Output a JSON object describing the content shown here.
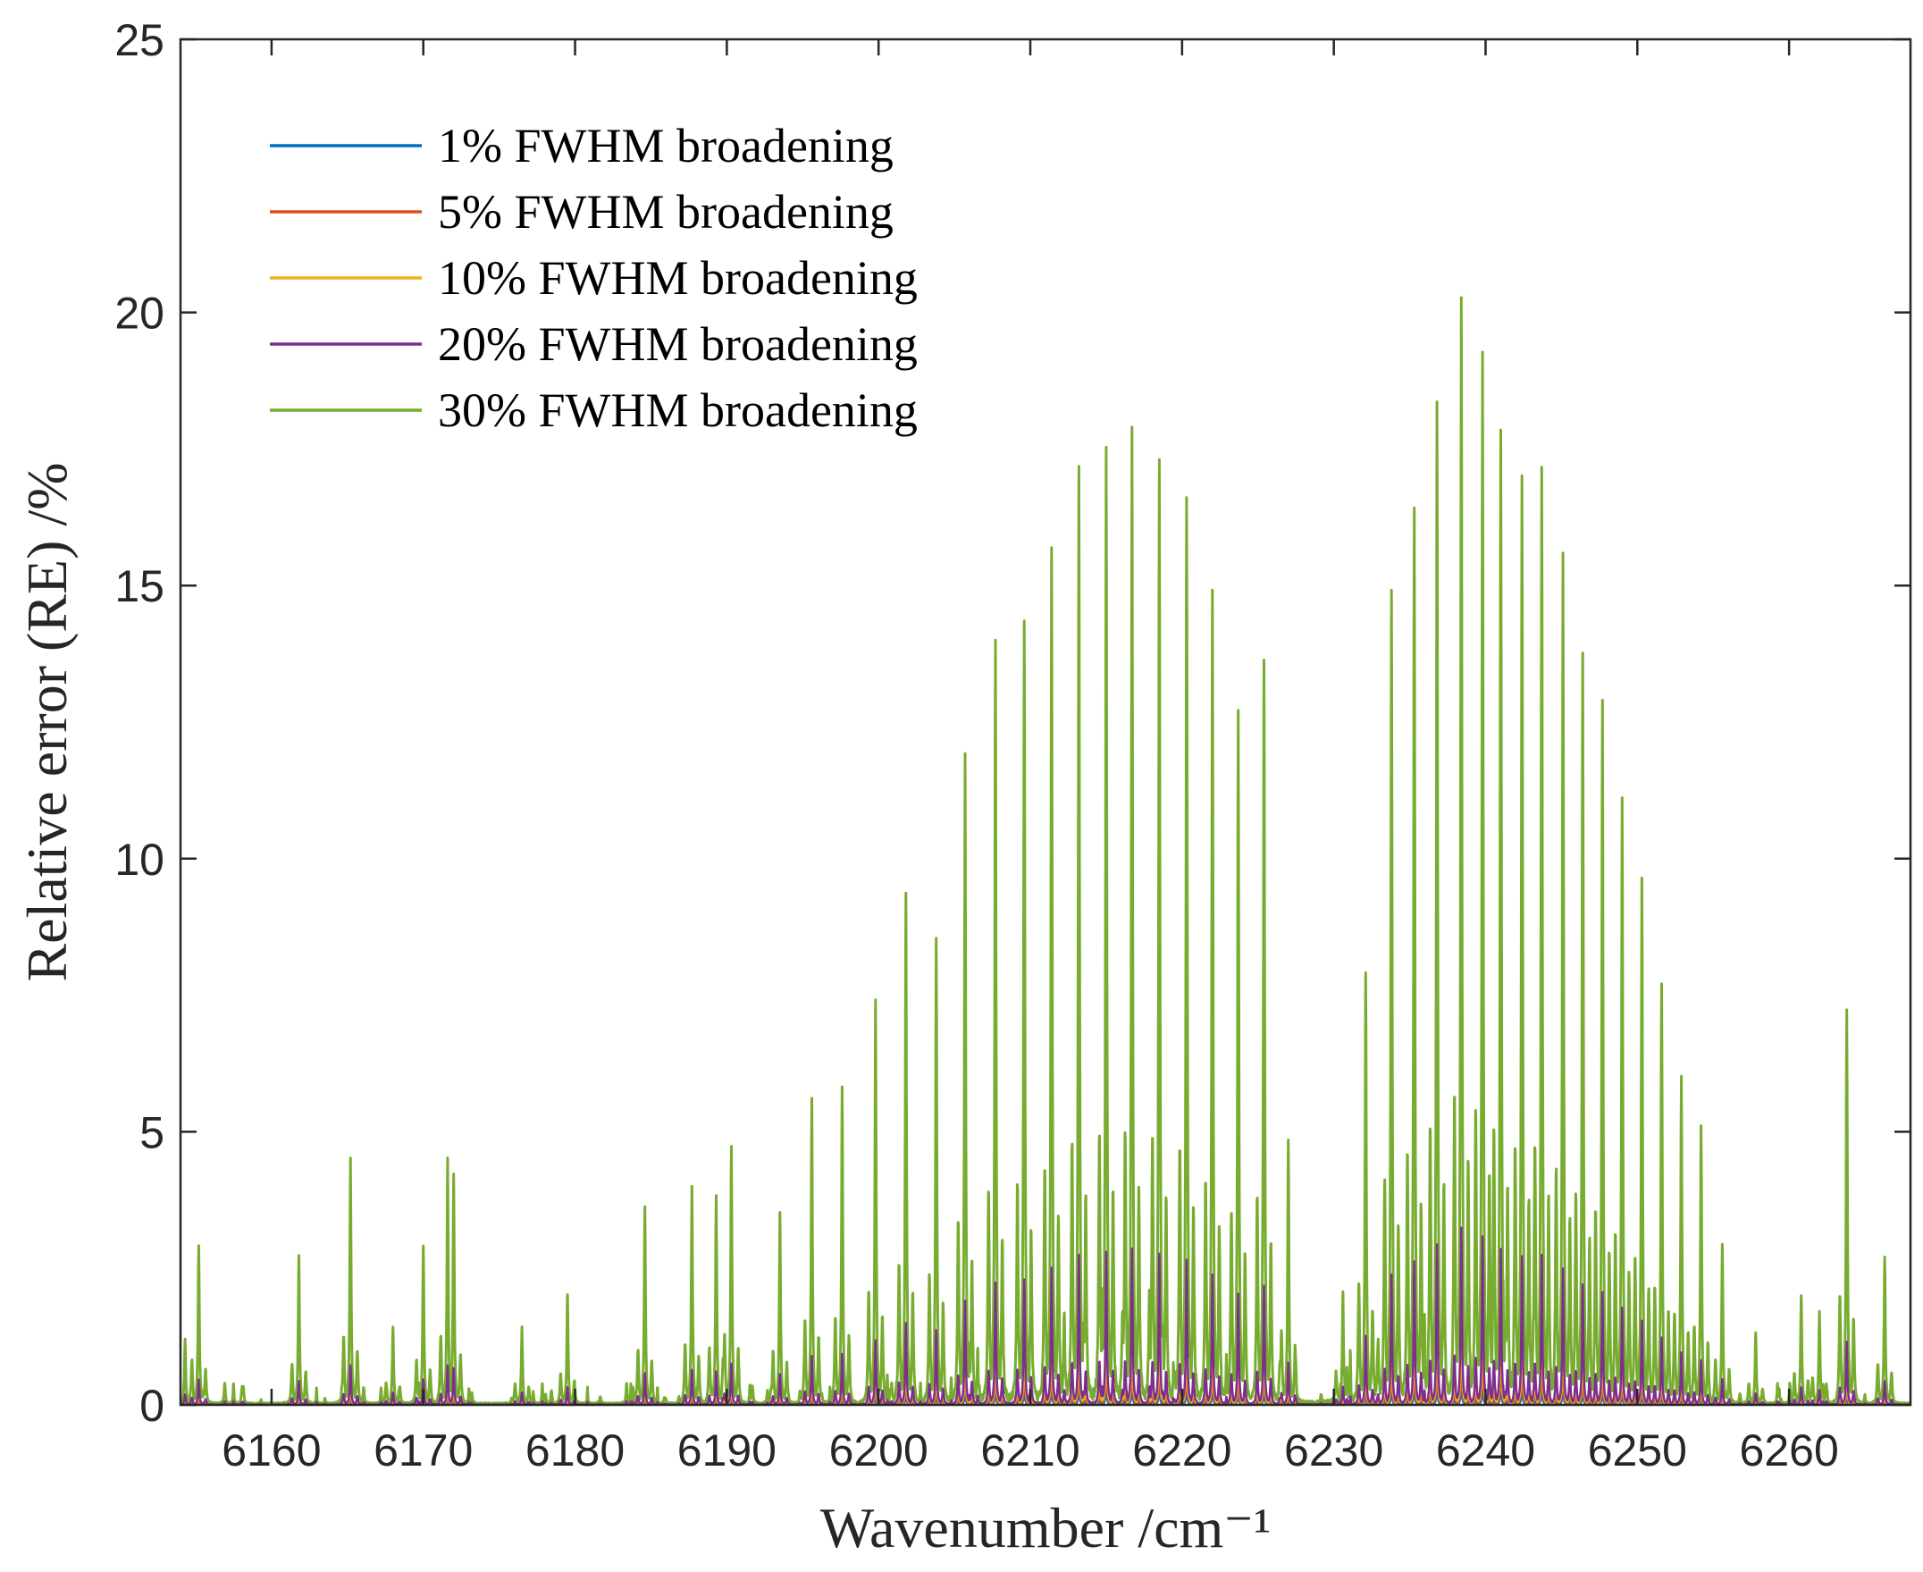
{
  "chart_data": {
    "type": "line",
    "title": "",
    "xlabel": "Wavenumber /cm⁻¹",
    "ylabel": "Relative error (RE) /%",
    "xlim": [
      6154,
      6268
    ],
    "ylim": [
      0,
      25
    ],
    "xticks": [
      6160,
      6170,
      6180,
      6190,
      6200,
      6210,
      6220,
      6230,
      6240,
      6250,
      6260
    ],
    "yticks": [
      0,
      5,
      10,
      15,
      20,
      25
    ],
    "grid": false,
    "legend_position": "top-left",
    "series": [
      {
        "name": "1% FWHM broadening",
        "color": "#0072BD",
        "scale": 0.02
      },
      {
        "name": "5% FWHM broadening",
        "color": "#D95319",
        "scale": 0.05
      },
      {
        "name": "10% FWHM broadening",
        "color": "#EDB120",
        "scale": 0.09
      },
      {
        "name": "20% FWHM broadening",
        "color": "#7E2F8E",
        "scale": 0.16
      },
      {
        "name": "30% FWHM broadening",
        "color": "#77AC30",
        "scale": 1.0
      }
    ],
    "peaks_30pct": {
      "x": [
        6154.3,
        6155.2,
        6161.8,
        6165.2,
        6168.0,
        6170.0,
        6171.6,
        6172.0,
        6176.5,
        6179.5,
        6184.6,
        6187.7,
        6189.3,
        6190.3,
        6193.5,
        6195.6,
        6197.6,
        6199.8,
        6201.8,
        6203.8,
        6205.7,
        6207.7,
        6209.6,
        6211.4,
        6213.2,
        6215.0,
        6216.7,
        6218.5,
        6220.3,
        6222.0,
        6223.7,
        6225.4,
        6227.0,
        6230.6,
        6232.1,
        6233.8,
        6235.3,
        6236.8,
        6238.4,
        6239.8,
        6241.0,
        6242.4,
        6243.7,
        6245.1,
        6246.4,
        6247.7,
        6249.0,
        6250.3,
        6251.6,
        6252.9,
        6254.2,
        6255.6,
        6257.8,
        6260.8,
        6262.0,
        6263.8,
        6266.3
      ],
      "y": [
        1.2,
        2.9,
        2.7,
        4.5,
        1.4,
        2.9,
        4.5,
        4.2,
        1.4,
        2.0,
        3.6,
        4.0,
        3.8,
        4.7,
        3.5,
        5.6,
        5.8,
        7.4,
        9.3,
        8.5,
        11.9,
        13.9,
        14.3,
        15.6,
        17.0,
        17.4,
        17.8,
        17.3,
        16.6,
        14.8,
        12.6,
        13.6,
        4.8,
        2.0,
        7.9,
        14.8,
        16.4,
        18.2,
        20.1,
        19.2,
        17.8,
        16.9,
        17.1,
        15.5,
        13.7,
        12.8,
        11.1,
        9.6,
        7.7,
        6.0,
        5.1,
        2.9,
        1.3,
        2.0,
        1.7,
        7.2,
        2.7
      ]
    }
  }
}
